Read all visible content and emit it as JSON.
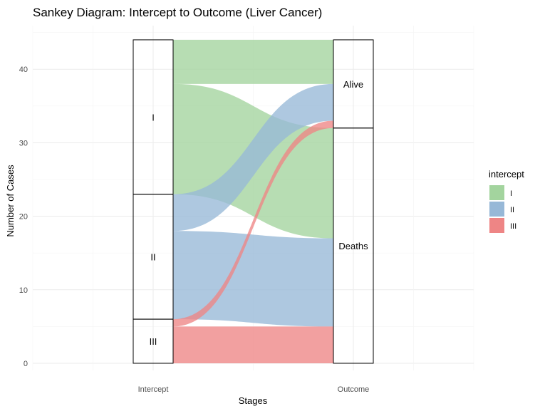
{
  "chart_data": {
    "type": "sankey",
    "title": "Sankey Diagram: Intercept to Outcome (Liver Cancer)",
    "xlabel": "Stages",
    "ylabel": "Number of Cases",
    "axes": [
      "Intercept",
      "Outcome"
    ],
    "ylim": [
      0,
      44
    ],
    "yticks": [
      0,
      10,
      20,
      30,
      40
    ],
    "grid": true,
    "legend": {
      "title": "intercept",
      "position": "right",
      "entries": [
        {
          "label": "I",
          "color": "#a3d49e"
        },
        {
          "label": "II",
          "color": "#97b8d7"
        },
        {
          "label": "III",
          "color": "#ee8585"
        }
      ]
    },
    "strata": {
      "Intercept": [
        "I",
        "II",
        "III"
      ],
      "Outcome": [
        "Alive",
        "Deaths"
      ]
    },
    "flows": [
      {
        "intercept": "I",
        "outcome": "Alive",
        "value": 6
      },
      {
        "intercept": "I",
        "outcome": "Deaths",
        "value": 15
      },
      {
        "intercept": "II",
        "outcome": "Alive",
        "value": 5
      },
      {
        "intercept": "II",
        "outcome": "Deaths",
        "value": 12
      },
      {
        "intercept": "III",
        "outcome": "Alive",
        "value": 1
      },
      {
        "intercept": "III",
        "outcome": "Deaths",
        "value": 5
      }
    ]
  }
}
